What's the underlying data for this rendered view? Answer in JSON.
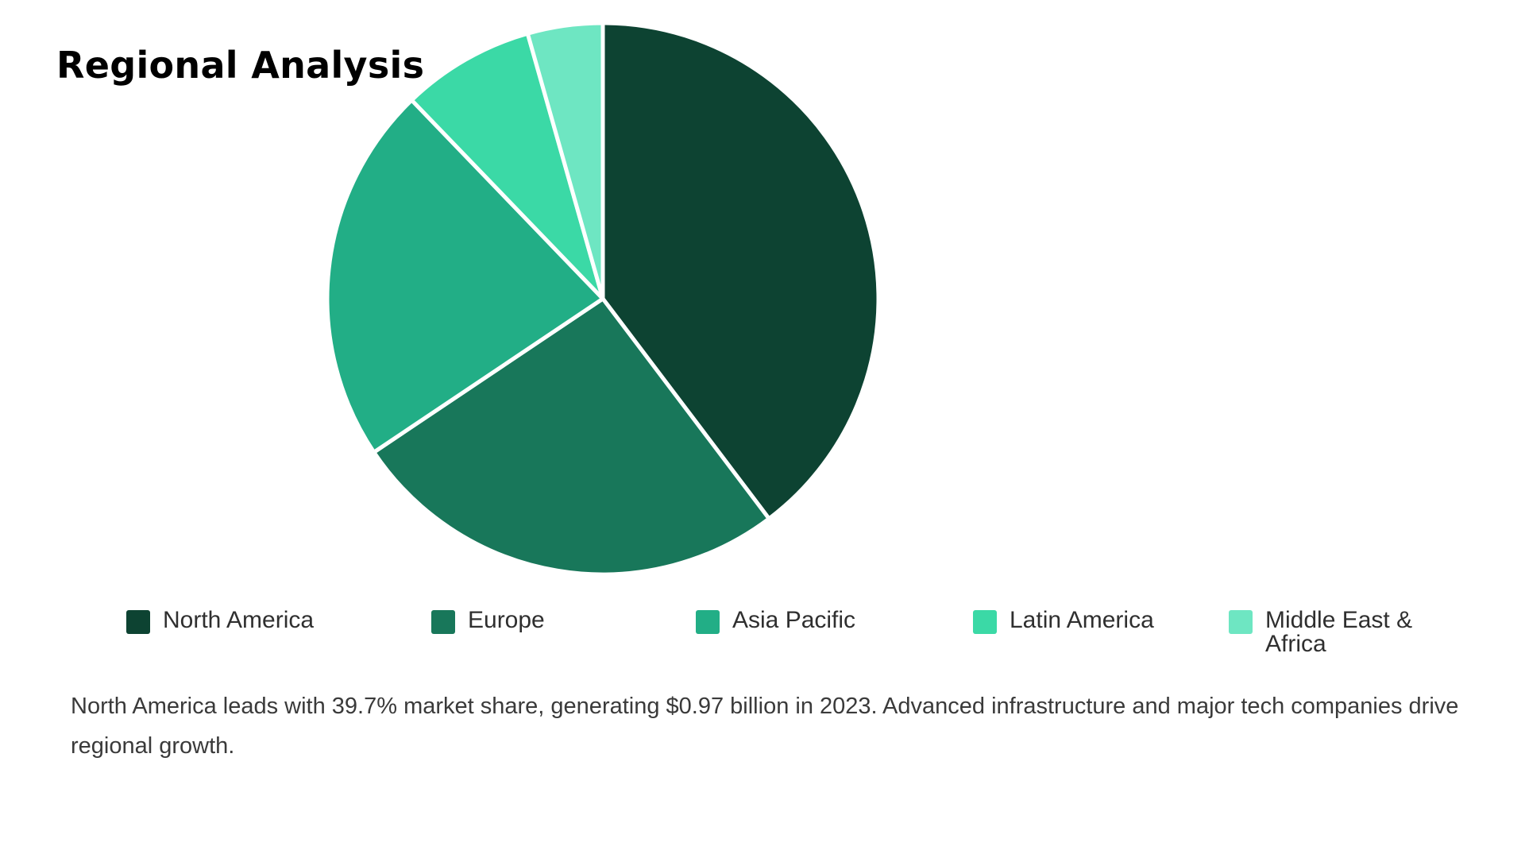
{
  "title": "Regional Analysis",
  "caption": "North America leads with 39.7% market share, generating $0.97 billion in 2023. Advanced infrastructure and major tech companies drive regional growth.",
  "chart_data": {
    "type": "pie",
    "categories": [
      "North America",
      "Europe",
      "Asia Pacific",
      "Latin America",
      "Middle East & Africa"
    ],
    "values": [
      39.7,
      25.9,
      22.2,
      7.8,
      4.4
    ],
    "colors": [
      "#0d4332",
      "#18775a",
      "#22ae86",
      "#3bd9a6",
      "#6ee6c2"
    ],
    "legend_position": "bottom"
  }
}
